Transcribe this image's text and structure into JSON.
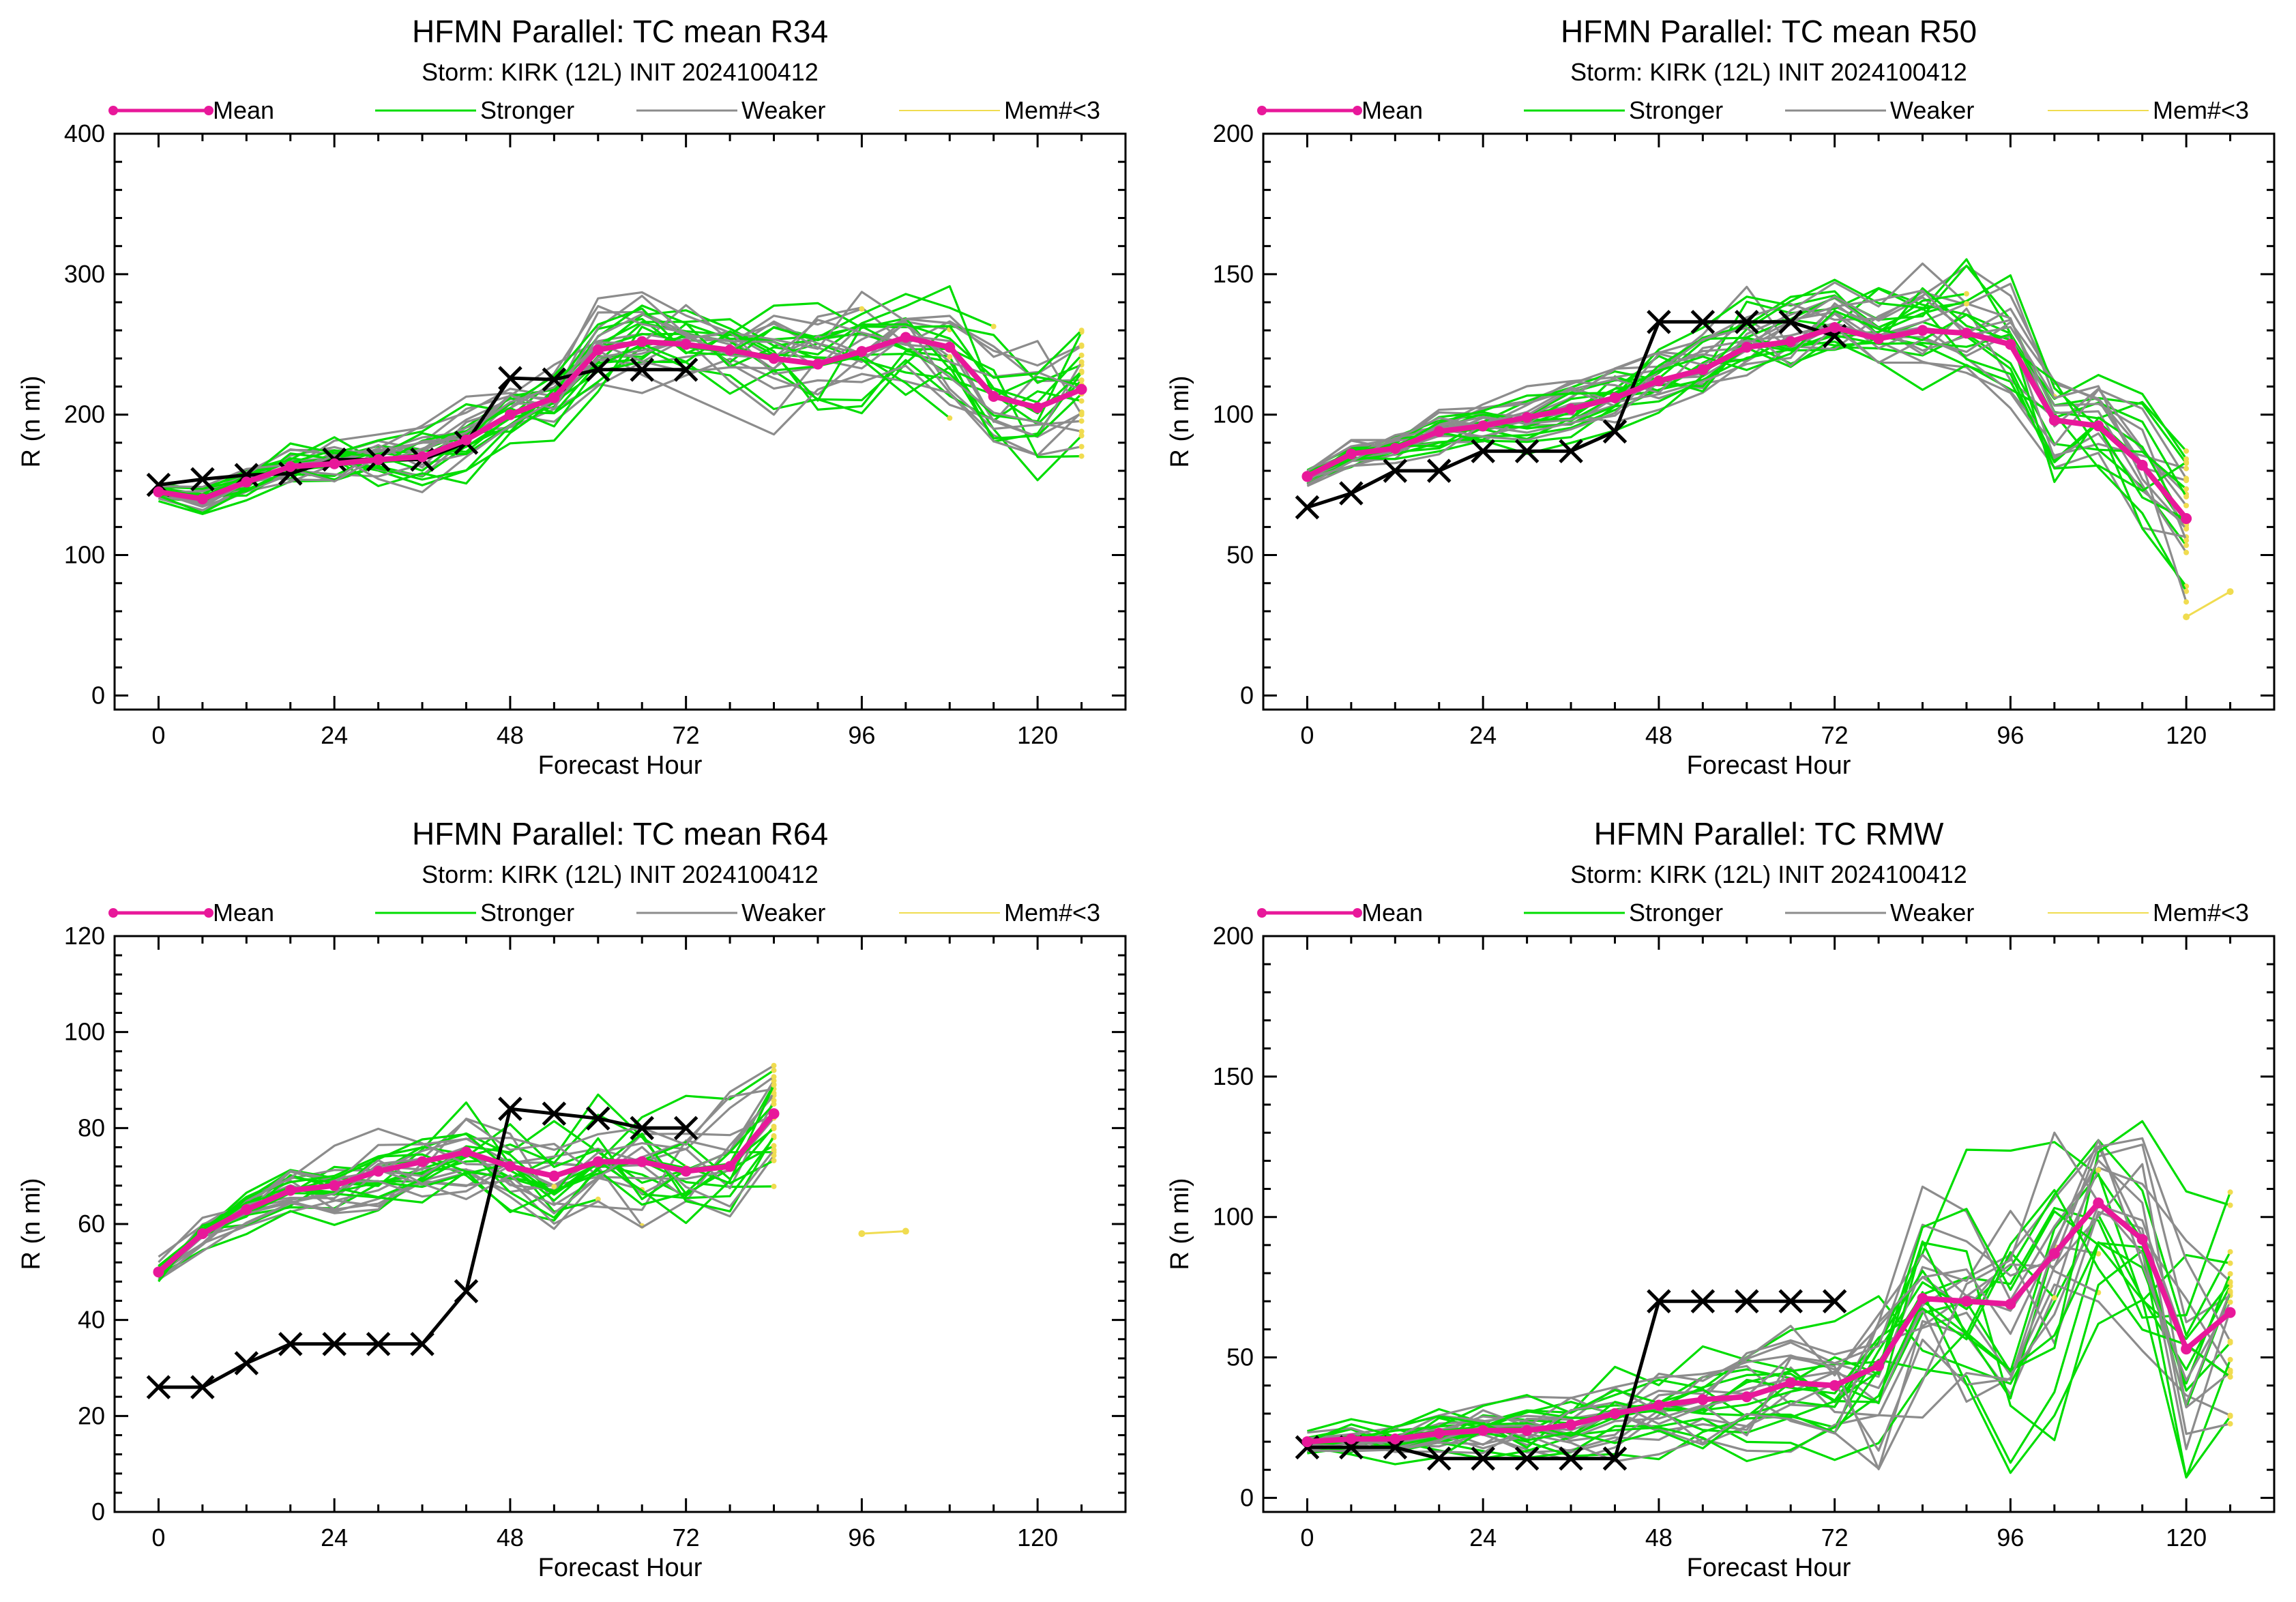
{
  "colors": {
    "mean": "#e8189a",
    "stronger": "#00dd00",
    "weaker": "#8c8c8c",
    "few_members": "#f0dc50",
    "best_track": "#000000"
  },
  "legend": {
    "mean": "Mean",
    "stronger": "Stronger",
    "weaker": "Weaker",
    "few_members": "Mem#<3"
  },
  "chart_data": [
    {
      "type": "line",
      "title": "HFMN Parallel: TC mean R34",
      "subtitle": "Storm: KIRK (12L) INIT 2024100412",
      "xlabel": "Forecast Hour",
      "ylabel": "R (n mi)",
      "xlim": [
        -6,
        132
      ],
      "ylim": [
        -10,
        400
      ],
      "xticks": [
        0,
        24,
        48,
        72,
        96,
        120
      ],
      "yticks": [
        0,
        100,
        200,
        300,
        400
      ],
      "grid": false,
      "legend_position": "top",
      "series": [
        {
          "name": "Mean",
          "x": [
            0,
            6,
            12,
            18,
            24,
            30,
            36,
            42,
            48,
            54,
            60,
            66,
            72,
            78,
            84,
            90,
            96,
            102,
            108,
            114,
            120,
            126
          ],
          "y": [
            145,
            140,
            152,
            163,
            165,
            168,
            170,
            182,
            200,
            212,
            246,
            252,
            250,
            246,
            240,
            236,
            245,
            255,
            248,
            213,
            205,
            218
          ]
        }
      ],
      "best_track": {
        "x": [
          0,
          6,
          12,
          18,
          24,
          30,
          36,
          42,
          48,
          54,
          60,
          66,
          72
        ],
        "y": [
          150,
          154,
          157,
          158,
          168,
          168,
          168,
          180,
          226,
          225,
          232,
          232,
          232
        ]
      }
    },
    {
      "type": "line",
      "title": "HFMN Parallel: TC mean R50",
      "subtitle": "Storm: KIRK (12L) INIT 2024100412",
      "xlabel": "Forecast Hour",
      "ylabel": "R (n mi)",
      "xlim": [
        -6,
        132
      ],
      "ylim": [
        -5,
        200
      ],
      "xticks": [
        0,
        24,
        48,
        72,
        96,
        120
      ],
      "yticks": [
        0,
        50,
        100,
        150,
        200
      ],
      "grid": false,
      "legend_position": "top",
      "series": [
        {
          "name": "Mean",
          "x": [
            0,
            6,
            12,
            18,
            24,
            30,
            36,
            42,
            48,
            54,
            60,
            66,
            72,
            78,
            84,
            90,
            96,
            102,
            108,
            114,
            120
          ],
          "y": [
            78,
            86,
            88,
            94,
            96,
            99,
            102,
            106,
            112,
            116,
            124,
            126,
            131,
            127,
            130,
            129,
            125,
            98,
            96,
            82,
            63
          ]
        }
      ],
      "best_track": {
        "x": [
          0,
          6,
          12,
          18,
          24,
          30,
          36,
          42,
          48,
          54,
          60,
          66,
          72
        ],
        "y": [
          67,
          72,
          80,
          80,
          87,
          87,
          87,
          94,
          133,
          133,
          133,
          133,
          128
        ]
      }
    },
    {
      "type": "line",
      "title": "HFMN Parallel: TC mean R64",
      "subtitle": "Storm: KIRK (12L) INIT 2024100412",
      "xlabel": "Forecast Hour",
      "ylabel": "R (n mi)",
      "xlim": [
        -6,
        132
      ],
      "ylim": [
        0,
        120
      ],
      "xticks": [
        0,
        24,
        48,
        72,
        96,
        120
      ],
      "yticks": [
        0,
        20,
        40,
        60,
        80,
        100,
        120
      ],
      "grid": false,
      "legend_position": "top",
      "series": [
        {
          "name": "Mean",
          "x": [
            0,
            6,
            12,
            18,
            24,
            30,
            36,
            42,
            48,
            54,
            60,
            66,
            72,
            78,
            84
          ],
          "y": [
            50,
            58,
            63,
            67,
            68,
            71,
            73,
            75,
            72,
            70,
            73,
            73,
            71,
            72,
            83
          ]
        }
      ],
      "best_track": {
        "x": [
          0,
          6,
          12,
          18,
          24,
          30,
          36,
          42,
          48,
          54,
          60,
          66,
          72
        ],
        "y": [
          26,
          26,
          31,
          35,
          35,
          35,
          35,
          46,
          84,
          83,
          82,
          80,
          80
        ]
      }
    },
    {
      "type": "line",
      "title": "HFMN Parallel: TC RMW",
      "subtitle": "Storm: KIRK (12L) INIT 2024100412",
      "xlabel": "Forecast Hour",
      "ylabel": "R (n mi)",
      "xlim": [
        -6,
        132
      ],
      "ylim": [
        -5,
        200
      ],
      "xticks": [
        0,
        24,
        48,
        72,
        96,
        120
      ],
      "yticks": [
        0,
        50,
        100,
        150,
        200
      ],
      "grid": false,
      "legend_position": "top",
      "series": [
        {
          "name": "Mean",
          "x": [
            0,
            6,
            12,
            18,
            24,
            30,
            36,
            42,
            48,
            54,
            60,
            66,
            72,
            78,
            84,
            90,
            96,
            102,
            108,
            114,
            120,
            126
          ],
          "y": [
            20,
            21,
            21,
            23,
            24,
            24,
            26,
            30,
            33,
            35,
            36,
            41,
            40,
            47,
            71,
            70,
            69,
            87,
            105,
            92,
            53,
            66
          ]
        }
      ],
      "best_track": {
        "x": [
          0,
          6,
          12,
          18,
          24,
          30,
          36,
          42,
          48,
          54,
          60,
          66,
          72
        ],
        "y": [
          18,
          18,
          18,
          14,
          14,
          14,
          14,
          14,
          70,
          70,
          70,
          70,
          70
        ]
      }
    }
  ]
}
